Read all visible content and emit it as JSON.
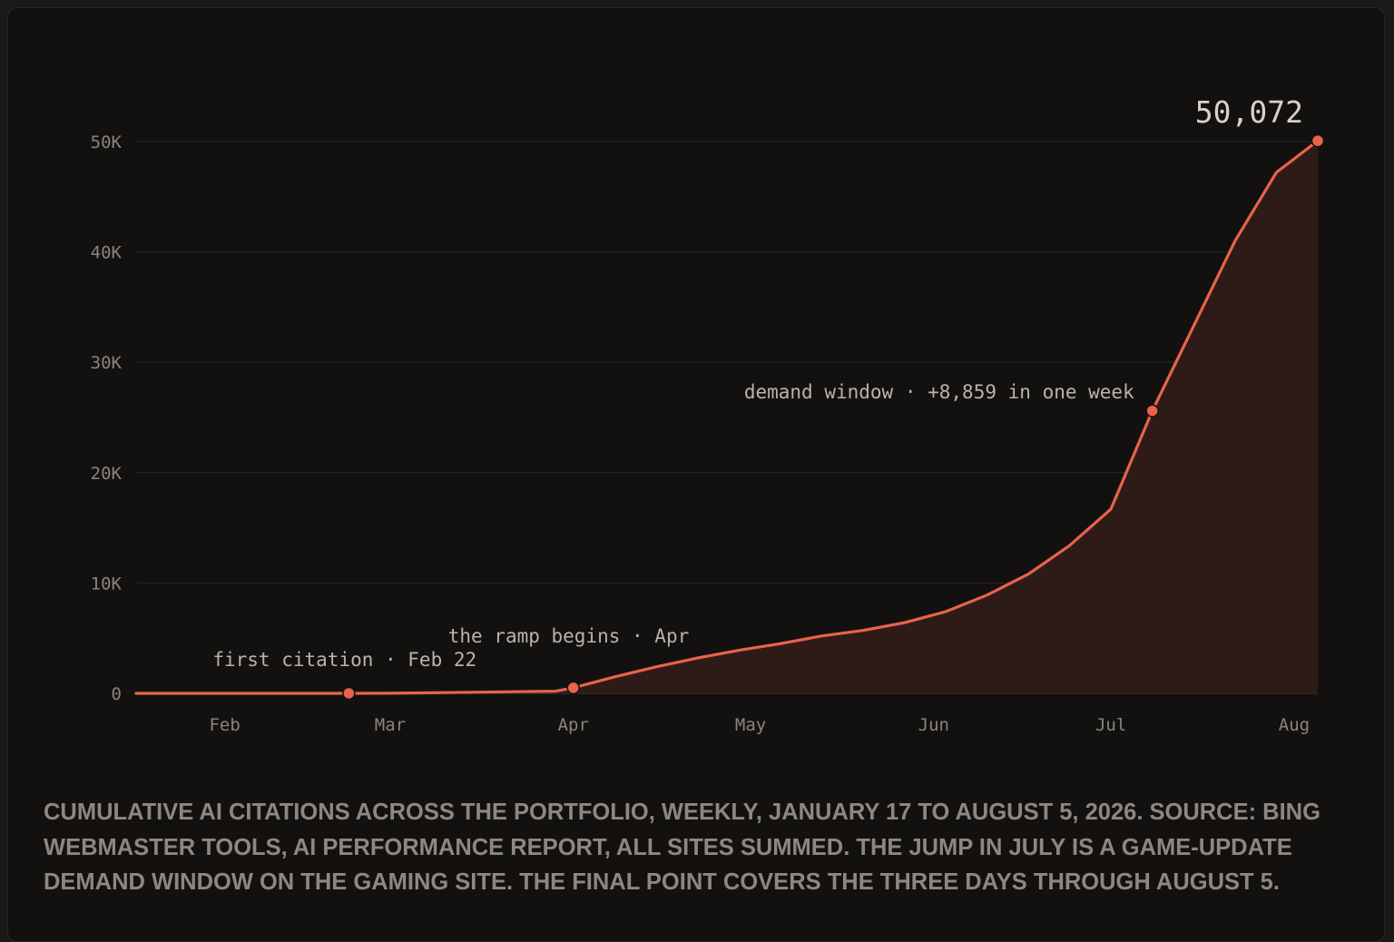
{
  "chart_data": {
    "type": "area",
    "x_type": "date",
    "x": [
      "2026-01-17",
      "2026-01-24",
      "2026-01-31",
      "2026-02-07",
      "2026-02-14",
      "2026-02-22",
      "2026-03-01",
      "2026-03-08",
      "2026-03-15",
      "2026-03-22",
      "2026-03-29",
      "2026-04-01",
      "2026-04-08",
      "2026-04-15",
      "2026-04-22",
      "2026-04-29",
      "2026-05-06",
      "2026-05-13",
      "2026-05-20",
      "2026-05-27",
      "2026-06-03",
      "2026-06-10",
      "2026-06-17",
      "2026-06-24",
      "2026-07-01",
      "2026-07-08",
      "2026-07-15",
      "2026-07-22",
      "2026-07-29",
      "2026-08-05"
    ],
    "y": [
      0,
      0,
      0,
      0,
      0,
      1,
      10,
      50,
      100,
      150,
      200,
      500,
      1500,
      2400,
      3200,
      3900,
      4500,
      5200,
      5700,
      6400,
      7400,
      8900,
      10800,
      13400,
      16700,
      25600,
      33300,
      41000,
      47200,
      50072
    ],
    "ylim": [
      0,
      50000
    ],
    "yticks": [
      0,
      10000,
      20000,
      30000,
      40000,
      50000
    ],
    "ytick_labels": [
      "0",
      "10K",
      "20K",
      "30K",
      "40K",
      "50K"
    ],
    "xticks": [
      {
        "date": "2026-02-01",
        "label": "Feb"
      },
      {
        "date": "2026-03-01",
        "label": "Mar"
      },
      {
        "date": "2026-04-01",
        "label": "Apr"
      },
      {
        "date": "2026-05-01",
        "label": "May"
      },
      {
        "date": "2026-06-01",
        "label": "Jun"
      },
      {
        "date": "2026-07-01",
        "label": "Jul"
      },
      {
        "date": "2026-08-01",
        "label": "Aug"
      }
    ],
    "grid": true,
    "line_color": "#e8634a",
    "fill_color": "#2e1b17",
    "annotations": [
      {
        "x": "2026-02-22",
        "y": 1,
        "text": "first citation · Feb 22"
      },
      {
        "x": "2026-04-01",
        "y": 500,
        "text": "the ramp begins · Apr"
      },
      {
        "x": "2026-07-08",
        "y": 25600,
        "text": "demand window · +8,859 in one week"
      },
      {
        "x": "2026-08-05",
        "y": 50072,
        "text": "50,072"
      }
    ]
  },
  "caption": "Cumulative AI citations across the portfolio, weekly, January 17 to August 5, 2026. Source: Bing Webmaster Tools, AI Performance report, all sites summed. The jump in July is a game-update demand window on the gaming site. The final point covers the three days through August 5."
}
